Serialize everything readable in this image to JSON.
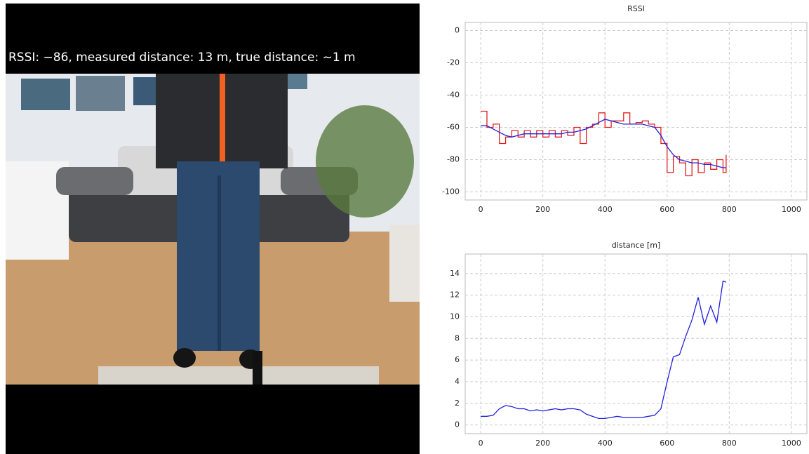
{
  "video": {
    "caption": "RSSI: −86, measured distance: 13 m, true distance: ~1 m"
  },
  "chart_data": [
    {
      "type": "line",
      "title": "RSSI",
      "x": [
        0,
        20,
        40,
        60,
        80,
        100,
        120,
        140,
        160,
        180,
        200,
        220,
        240,
        260,
        280,
        300,
        320,
        340,
        360,
        380,
        400,
        420,
        440,
        460,
        480,
        500,
        520,
        540,
        560,
        580,
        600,
        620,
        640,
        660,
        680,
        700,
        720,
        740,
        760,
        780,
        790
      ],
      "series": [
        {
          "color": "#e02020",
          "step": true,
          "values": [
            -50,
            -60,
            -58,
            -70,
            -66,
            -62,
            -66,
            -62,
            -66,
            -62,
            -66,
            -62,
            -66,
            -62,
            -65,
            -60,
            -70,
            -60,
            -58,
            -51,
            -60,
            -56,
            -56,
            -51,
            -58,
            -57,
            -56,
            -58,
            -60,
            -70,
            -88,
            -78,
            -82,
            -90,
            -80,
            -88,
            -82,
            -86,
            -80,
            -88,
            -77
          ]
        },
        {
          "color": "#2020e0",
          "values": [
            -59,
            -59,
            -61,
            -63,
            -65,
            -66,
            -65,
            -64,
            -64,
            -64,
            -64,
            -64,
            -64,
            -64,
            -63,
            -63,
            -62,
            -61,
            -59,
            -57,
            -55,
            -56,
            -57,
            -58,
            -58,
            -58,
            -58,
            -59,
            -60,
            -65,
            -72,
            -77,
            -80,
            -81,
            -82,
            -82,
            -83,
            -83,
            -84,
            -85,
            -85
          ]
        }
      ],
      "xlim": [
        -50,
        1050
      ],
      "xticks": [
        0,
        200,
        400,
        600,
        800,
        1000
      ],
      "ylim": [
        -105,
        5
      ],
      "yticks": [
        0,
        -20,
        -40,
        -60,
        -80,
        -100
      ],
      "grid": true
    },
    {
      "type": "line",
      "title": "distance [m]",
      "x": [
        0,
        20,
        40,
        60,
        80,
        100,
        120,
        140,
        160,
        180,
        200,
        220,
        240,
        260,
        280,
        300,
        320,
        340,
        360,
        380,
        400,
        420,
        440,
        460,
        480,
        500,
        520,
        540,
        560,
        580,
        600,
        620,
        640,
        660,
        680,
        700,
        720,
        740,
        760,
        780,
        790
      ],
      "series": [
        {
          "color": "#2020e0",
          "values": [
            0.8,
            0.8,
            0.9,
            1.5,
            1.8,
            1.7,
            1.5,
            1.5,
            1.3,
            1.4,
            1.3,
            1.4,
            1.5,
            1.4,
            1.5,
            1.5,
            1.4,
            1.0,
            0.8,
            0.6,
            0.6,
            0.7,
            0.8,
            0.7,
            0.7,
            0.7,
            0.7,
            0.8,
            0.9,
            1.5,
            4.0,
            6.3,
            6.5,
            8.2,
            9.7,
            11.8,
            9.3,
            11.0,
            9.5,
            13.3,
            13.2
          ]
        }
      ],
      "xlim": [
        -50,
        1050
      ],
      "xticks": [
        0,
        200,
        400,
        600,
        800,
        1000
      ],
      "ylim": [
        -0.8,
        15.8
      ],
      "yticks": [
        0,
        2,
        4,
        6,
        8,
        10,
        12,
        14
      ],
      "grid": true
    }
  ]
}
